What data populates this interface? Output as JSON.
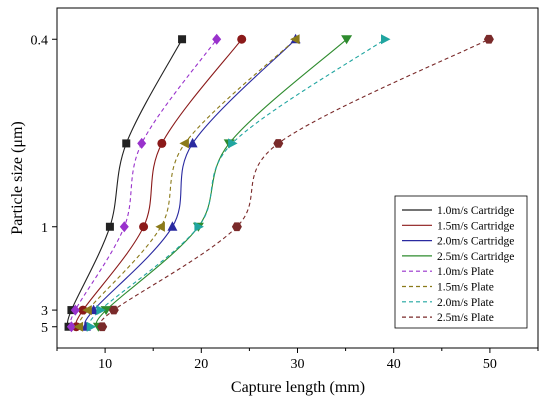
{
  "chart_data": {
    "type": "line",
    "title": "",
    "xlabel": "Capture length (mm)",
    "ylabel": "Particle size (μm)",
    "xlim": [
      5,
      55
    ],
    "x_ticks": [
      10,
      20,
      30,
      40,
      50
    ],
    "y_ticks": [
      {
        "value": 0.4,
        "label": "0.4"
      },
      {
        "value": 1,
        "label": "1"
      },
      {
        "value": 3,
        "label": "3"
      },
      {
        "value": 5,
        "label": "5"
      }
    ],
    "y_scale": "reciprocal",
    "grid": false,
    "legend_position": "bottom-right",
    "series": [
      {
        "name": "1.0m/s Cartridge",
        "color": "#222222",
        "line_style": "solid",
        "marker": "square",
        "points": [
          [
            6.2,
            5
          ],
          [
            6.5,
            3
          ],
          [
            10.5,
            1
          ],
          [
            12.2,
            0.6
          ],
          [
            18.0,
            0.4
          ]
        ]
      },
      {
        "name": "1.5m/s Cartridge",
        "color": "#8b1a1a",
        "line_style": "solid",
        "marker": "circle",
        "points": [
          [
            7.0,
            5
          ],
          [
            7.7,
            3
          ],
          [
            14.0,
            1
          ],
          [
            15.9,
            0.6
          ],
          [
            24.2,
            0.4
          ]
        ]
      },
      {
        "name": "2.0m/s Cartridge",
        "color": "#2a2aa0",
        "line_style": "solid",
        "marker": "triangle-up",
        "points": [
          [
            8.0,
            5
          ],
          [
            8.8,
            3
          ],
          [
            17.0,
            1
          ],
          [
            19.1,
            0.6
          ],
          [
            29.8,
            0.4
          ]
        ]
      },
      {
        "name": "2.5m/s Cartridge",
        "color": "#2e8b2e",
        "line_style": "solid",
        "marker": "triangle-down",
        "points": [
          [
            9.3,
            5
          ],
          [
            10.1,
            3
          ],
          [
            19.7,
            1
          ],
          [
            22.9,
            0.6
          ],
          [
            35.1,
            0.4
          ]
        ]
      },
      {
        "name": "1.0m/s Plate",
        "color": "#9932cc",
        "line_style": "dashed",
        "marker": "diamond",
        "points": [
          [
            6.5,
            5
          ],
          [
            6.9,
            3
          ],
          [
            12.0,
            1
          ],
          [
            13.8,
            0.6
          ],
          [
            21.6,
            0.4
          ]
        ]
      },
      {
        "name": "1.5m/s Plate",
        "color": "#8b7a1a",
        "line_style": "dashed",
        "marker": "triangle-left",
        "points": [
          [
            7.3,
            5
          ],
          [
            8.2,
            3
          ],
          [
            15.8,
            1
          ],
          [
            18.3,
            0.6
          ],
          [
            29.8,
            0.4
          ]
        ]
      },
      {
        "name": "2.0m/s Plate",
        "color": "#20a5a0",
        "line_style": "dashed",
        "marker": "triangle-right",
        "points": [
          [
            8.5,
            5
          ],
          [
            9.5,
            3
          ],
          [
            19.7,
            1
          ],
          [
            23.2,
            0.6
          ],
          [
            39.1,
            0.4
          ]
        ]
      },
      {
        "name": "2.5m/s Plate",
        "color": "#7a2a2a",
        "line_style": "dashed",
        "marker": "hexagon",
        "points": [
          [
            9.7,
            5
          ],
          [
            10.9,
            3
          ],
          [
            23.7,
            1
          ],
          [
            28.0,
            0.6
          ],
          [
            49.9,
            0.4
          ]
        ]
      }
    ]
  }
}
